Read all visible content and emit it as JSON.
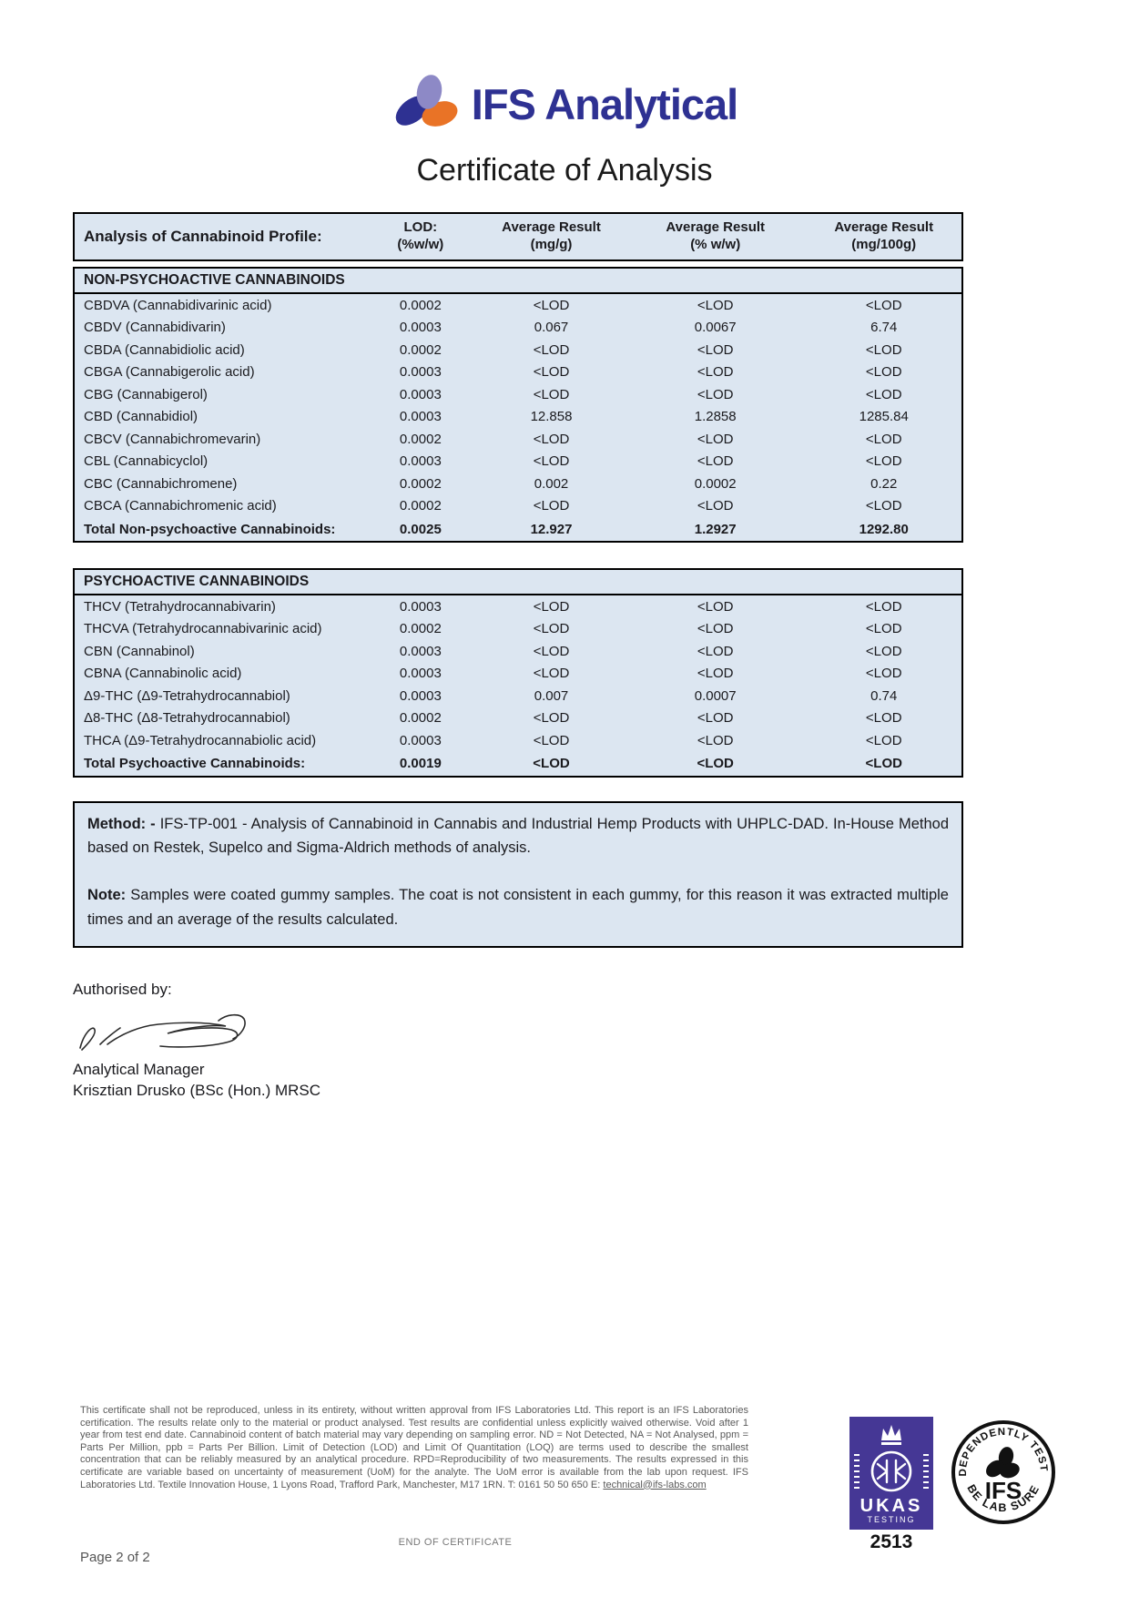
{
  "colors": {
    "accent": "#2e3192",
    "table_bg": "#dce6f1",
    "ukas_purple": "#453795",
    "orange": "#e97326",
    "light_purple": "#8d89c6"
  },
  "brand": {
    "name": "IFS Analytical"
  },
  "page": {
    "title": "Certificate of Analysis"
  },
  "table": {
    "header": {
      "col1": "Analysis of Cannabinoid Profile:",
      "cols": [
        {
          "line1": "LOD:",
          "line2": "(%w/w)"
        },
        {
          "line1": "Average Result",
          "line2": "(mg/g)"
        },
        {
          "line1": "Average Result",
          "line2": "(% w/w)"
        },
        {
          "line1": "Average Result",
          "line2": "(mg/100g)"
        }
      ]
    },
    "sections": [
      {
        "title": "NON-PSYCHOACTIVE CANNABINOIDS",
        "rows": [
          {
            "analyte": "CBDVA (Cannabidivarinic acid)",
            "lod": "0.0002",
            "mg_g": "<LOD",
            "pct_ww": "<LOD",
            "mg_100g": "<LOD"
          },
          {
            "analyte": "CBDV (Cannabidivarin)",
            "lod": "0.0003",
            "mg_g": "0.067",
            "pct_ww": "0.0067",
            "mg_100g": "6.74"
          },
          {
            "analyte": "CBDA (Cannabidiolic acid)",
            "lod": "0.0002",
            "mg_g": "<LOD",
            "pct_ww": "<LOD",
            "mg_100g": "<LOD"
          },
          {
            "analyte": "CBGA (Cannabigerolic acid)",
            "lod": "0.0003",
            "mg_g": "<LOD",
            "pct_ww": "<LOD",
            "mg_100g": "<LOD"
          },
          {
            "analyte": "CBG (Cannabigerol)",
            "lod": "0.0003",
            "mg_g": "<LOD",
            "pct_ww": "<LOD",
            "mg_100g": "<LOD"
          },
          {
            "analyte": "CBD (Cannabidiol)",
            "lod": "0.0003",
            "mg_g": "12.858",
            "pct_ww": "1.2858",
            "mg_100g": "1285.84"
          },
          {
            "analyte": "CBCV (Cannabichromevarin)",
            "lod": "0.0002",
            "mg_g": "<LOD",
            "pct_ww": "<LOD",
            "mg_100g": "<LOD"
          },
          {
            "analyte": "CBL (Cannabicyclol)",
            "lod": "0.0003",
            "mg_g": "<LOD",
            "pct_ww": "<LOD",
            "mg_100g": "<LOD"
          },
          {
            "analyte": "CBC (Cannabichromene)",
            "lod": "0.0002",
            "mg_g": "0.002",
            "pct_ww": "0.0002",
            "mg_100g": "0.22"
          },
          {
            "analyte": "CBCA (Cannabichromenic acid)",
            "lod": "0.0002",
            "mg_g": "<LOD",
            "pct_ww": "<LOD",
            "mg_100g": "<LOD"
          }
        ],
        "total": {
          "analyte": "Total Non-psychoactive Cannabinoids:",
          "lod": "0.0025",
          "mg_g": "12.927",
          "pct_ww": "1.2927",
          "mg_100g": "1292.80"
        }
      },
      {
        "title": "PSYCHOACTIVE CANNABINOIDS",
        "rows": [
          {
            "analyte": "THCV (Tetrahydrocannabivarin)",
            "lod": "0.0003",
            "mg_g": "<LOD",
            "pct_ww": "<LOD",
            "mg_100g": "<LOD"
          },
          {
            "analyte": "THCVA (Tetrahydrocannabivarinic acid)",
            "lod": "0.0002",
            "mg_g": "<LOD",
            "pct_ww": "<LOD",
            "mg_100g": "<LOD"
          },
          {
            "analyte": "CBN (Cannabinol)",
            "lod": "0.0003",
            "mg_g": "<LOD",
            "pct_ww": "<LOD",
            "mg_100g": "<LOD"
          },
          {
            "analyte": "CBNA (Cannabinolic acid)",
            "lod": "0.0003",
            "mg_g": "<LOD",
            "pct_ww": "<LOD",
            "mg_100g": "<LOD"
          },
          {
            "analyte": "Δ9-THC (Δ9-Tetrahydrocannabiol)",
            "lod": "0.0003",
            "mg_g": "0.007",
            "pct_ww": "0.0007",
            "mg_100g": "0.74"
          },
          {
            "analyte": "Δ8-THC (Δ8-Tetrahydrocannabiol)",
            "lod": "0.0002",
            "mg_g": "<LOD",
            "pct_ww": "<LOD",
            "mg_100g": "<LOD"
          },
          {
            "analyte": "THCA (Δ9-Tetrahydrocannabiolic acid)",
            "lod": "0.0003",
            "mg_g": "<LOD",
            "pct_ww": "<LOD",
            "mg_100g": "<LOD"
          }
        ],
        "total": {
          "analyte": "Total Psychoactive Cannabinoids:",
          "lod": "0.0019",
          "mg_g": "<LOD",
          "pct_ww": "<LOD",
          "mg_100g": "<LOD"
        }
      }
    ]
  },
  "method": {
    "label": "Method: -",
    "text": "IFS-TP-001 - Analysis of Cannabinoid in Cannabis and Industrial Hemp Products with UHPLC-DAD. In-House Method based on Restek, Supelco and Sigma-Aldrich methods of analysis.",
    "note_label": "Note:",
    "note_text": "Samples were coated gummy samples. The coat is not consistent in each gummy, for this reason it was extracted multiple times and an average of the results calculated."
  },
  "authorisation": {
    "label": "Authorised by:",
    "role": "Analytical Manager",
    "name": "Krisztian Drusko (BSc (Hon.) MRSC"
  },
  "footer": {
    "disclaimer": "This certificate shall not be reproduced, unless in its entirety, without written approval from IFS Laboratories Ltd. This report is an IFS Laboratories certification. The results relate only to the material or product analysed. Test results are confidential unless explicitly waived otherwise. Void after 1 year from test end date. Cannabinoid content of batch material may vary depending on sampling error. ND = Not Detected, NA = Not Analysed, ppm = Parts Per Million, ppb = Parts Per Billion. Limit of Detection (LOD) and Limit Of Quantitation (LOQ) are terms used to describe the smallest concentration that can be reliably measured by an analytical procedure. RPD=Reproducibility of two measurements. The results expressed in this certificate are variable based on uncertainty of measurement (UoM) for the analyte. The UoM error is available from the lab upon request. IFS Laboratories Ltd. Textile Innovation House, 1 Lyons Road, Trafford Park, Manchester, M17 1RN. T: 0161 50 50 650 E: ",
    "email": "technical@ifs-labs.com",
    "end_text": "END OF CERTIFICATE",
    "page_number": "Page 2 of 2",
    "ukas": {
      "name": "UKAS",
      "sub": "TESTING",
      "number": "2513"
    },
    "ifs_seal": {
      "top": "INDEPENDENTLY TESTED",
      "center": "IFS",
      "bottom": "BE LAB SURE"
    }
  }
}
